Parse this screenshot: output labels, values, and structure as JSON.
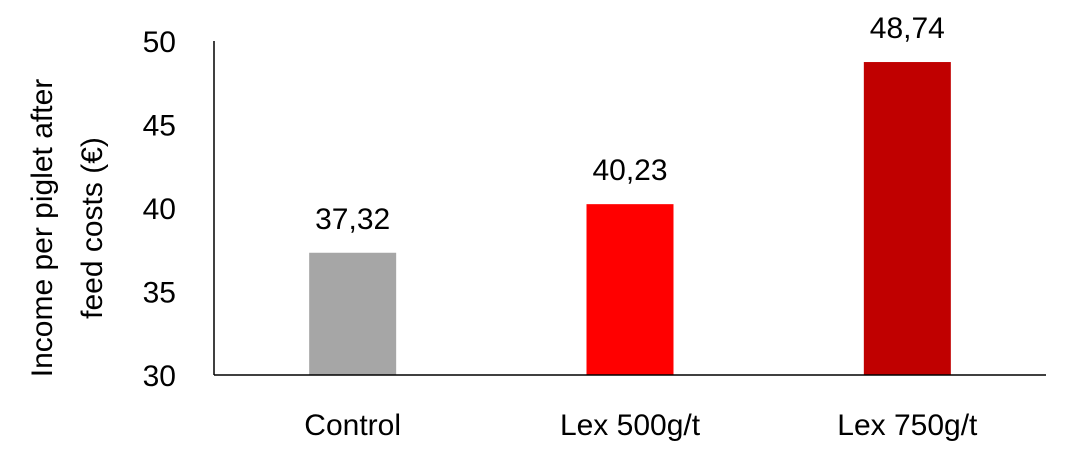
{
  "chart_data": {
    "type": "bar",
    "categories": [
      "Control",
      "Lex 500g/t",
      "Lex 750g/t"
    ],
    "values": [
      37.32,
      40.23,
      48.74
    ],
    "data_labels": [
      "37,32",
      "40,23",
      "48,74"
    ],
    "bar_colors": [
      "#a6a6a6",
      "#ff0000",
      "#c00000"
    ],
    "ylabel_lines": [
      "Income per piglet after",
      "feed costs (€)"
    ],
    "xlabel": "",
    "title": "",
    "ylim": [
      30,
      50
    ],
    "yticks": [
      30,
      35,
      40,
      45,
      50
    ],
    "ytick_labels": [
      "30",
      "35",
      "40",
      "45",
      "50"
    ],
    "grid": false,
    "legend": "none"
  }
}
